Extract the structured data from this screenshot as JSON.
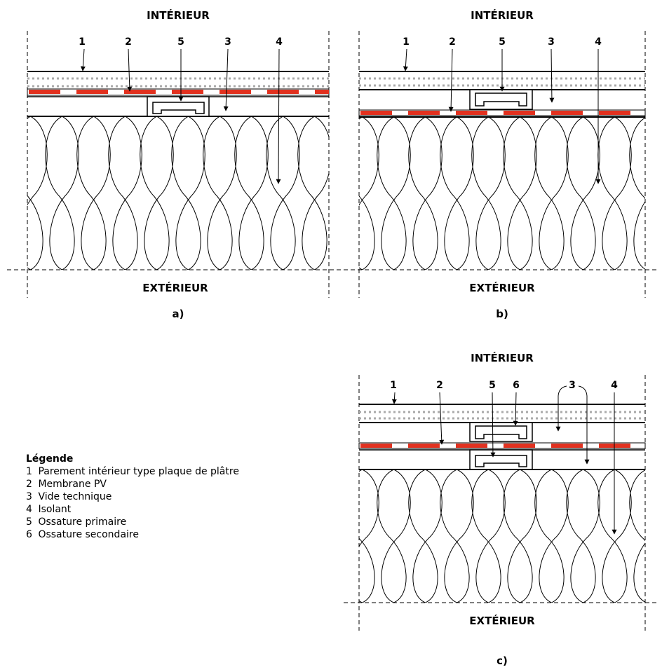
{
  "colors": {
    "membrane": "#e2311f",
    "dotted": "#aaaaaa",
    "stroke": "#000000"
  },
  "panels": {
    "a": {
      "top": "INTÉRIEUR",
      "bottom": "EXTÉRIEUR",
      "caption": "a)",
      "callouts": [
        "1",
        "2",
        "5",
        "3",
        "4"
      ]
    },
    "b": {
      "top": "INTÉRIEUR",
      "bottom": "EXTÉRIEUR",
      "caption": "b)",
      "callouts": [
        "1",
        "2",
        "5",
        "3",
        "4"
      ]
    },
    "c": {
      "top": "INTÉRIEUR",
      "bottom": "EXTÉRIEUR",
      "caption": "c)",
      "callouts": [
        "1",
        "2",
        "5",
        "6",
        "3",
        "4"
      ]
    }
  },
  "legend": {
    "title": "Légende",
    "items": [
      {
        "num": "1",
        "text": "Parement intérieur type plaque de plâtre"
      },
      {
        "num": "2",
        "text": "Membrane PV"
      },
      {
        "num": "3",
        "text": "Vide technique"
      },
      {
        "num": "4",
        "text": "Isolant"
      },
      {
        "num": "5",
        "text": "Ossature primaire"
      },
      {
        "num": "6",
        "text": "Ossature secondaire"
      }
    ]
  }
}
